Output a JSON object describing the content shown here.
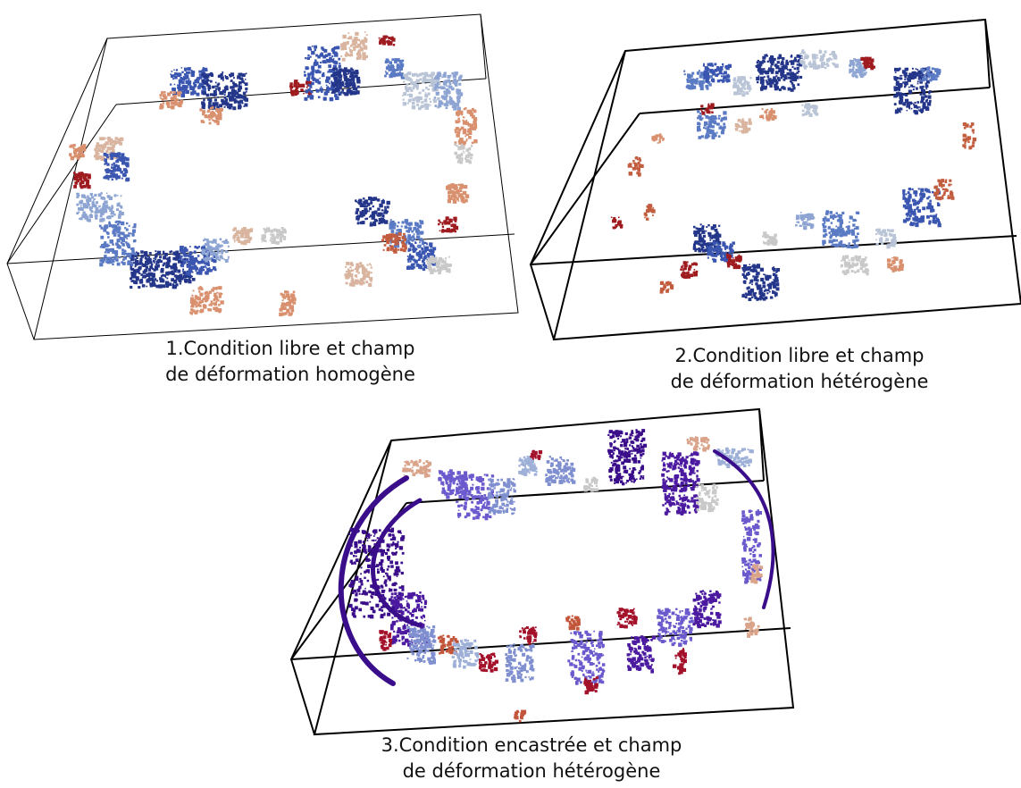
{
  "panels": [
    {
      "caption_line1": "1.Condition libre et champ",
      "caption_line2": "de déformation homogène"
    },
    {
      "caption_line1": "2.Condition libre et champ",
      "caption_line2": "de déformation hétérogène"
    },
    {
      "caption_line1": "3.Condition encastrée et champ",
      "caption_line2": "de déformation hétérogène"
    }
  ],
  "colors": {
    "box_edge": "#000000",
    "crack_palette": [
      "#24368a",
      "#3a56b0",
      "#5b7ac4",
      "#8ea5d3",
      "#b9c4d6",
      "#c9c9c9",
      "#d9b5a0",
      "#d9906e",
      "#c25d3f",
      "#9e1b1f"
    ],
    "crack_palette_panel3": [
      "#3a0d8a",
      "#4c1aa0",
      "#6a5acd",
      "#7f8fd0",
      "#9fb0d8",
      "#c9c9c9",
      "#d9a48a",
      "#c2553a",
      "#a3112a"
    ]
  }
}
